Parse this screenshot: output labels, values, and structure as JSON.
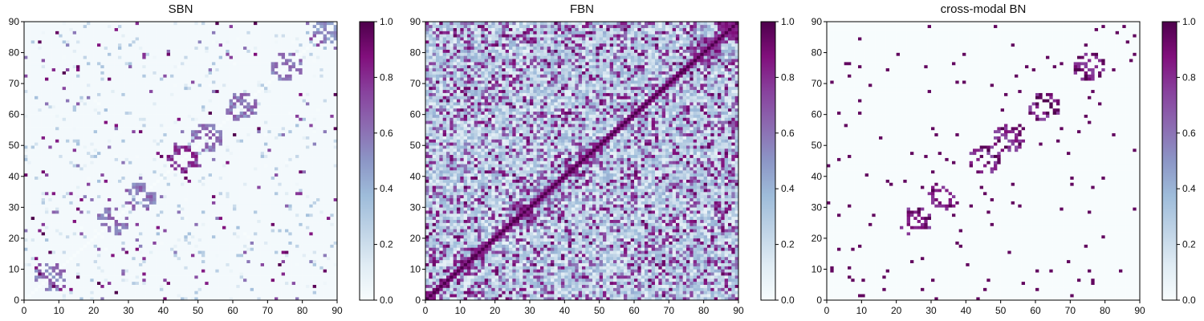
{
  "chart_data": [
    {
      "type": "heatmap",
      "title": "SBN",
      "x_ticks": [
        "0",
        "10",
        "20",
        "30",
        "40",
        "50",
        "60",
        "70",
        "80",
        "90"
      ],
      "y_ticks": [
        "0",
        "10",
        "20",
        "30",
        "40",
        "50",
        "60",
        "70",
        "80",
        "90"
      ],
      "xlim": [
        0,
        90
      ],
      "ylim": [
        0,
        90
      ],
      "grid_size": 90,
      "colormap": "BuPu",
      "colorbar": {
        "ticks": [
          "0.0",
          "0.2",
          "0.4",
          "0.6",
          "0.8",
          "1.0"
        ],
        "range": [
          0,
          1
        ]
      },
      "pattern": "sparse",
      "clusters": [
        {
          "center": [
            45,
            45
          ],
          "value": 0.9
        },
        {
          "center": [
            25,
            25
          ],
          "value": 0.7
        },
        {
          "center": [
            33,
            33
          ],
          "value": 0.7
        },
        {
          "center": [
            52,
            52
          ],
          "value": 0.7
        },
        {
          "center": [
            62,
            62
          ],
          "value": 0.7
        },
        {
          "center": [
            7,
            7
          ],
          "value": 0.7
        },
        {
          "center": [
            75,
            75
          ],
          "value": 0.7
        },
        {
          "center": [
            87,
            87
          ],
          "value": 0.6
        }
      ]
    },
    {
      "type": "heatmap",
      "title": "FBN",
      "x_ticks": [
        "0",
        "10",
        "20",
        "30",
        "40",
        "50",
        "60",
        "70",
        "80",
        "90"
      ],
      "y_ticks": [
        "0",
        "10",
        "20",
        "30",
        "40",
        "50",
        "60",
        "70",
        "80",
        "90"
      ],
      "xlim": [
        0,
        90
      ],
      "ylim": [
        0,
        90
      ],
      "grid_size": 90,
      "colormap": "BuPu",
      "colorbar": {
        "ticks": [
          "0.0",
          "0.2",
          "0.4",
          "0.6",
          "0.8",
          "1.0"
        ],
        "range": [
          0,
          1
        ]
      },
      "pattern": "dense",
      "clusters": [
        {
          "center": [
            48,
            48
          ],
          "value": 0.9
        },
        {
          "center": [
            12,
            12
          ],
          "value": 0.95
        },
        {
          "center": [
            27,
            27
          ],
          "value": 0.9
        },
        {
          "center": [
            80,
            80
          ],
          "value": 0.9
        },
        {
          "center": [
            87,
            87
          ],
          "value": 0.9
        }
      ]
    },
    {
      "type": "heatmap",
      "title": "cross-modal BN",
      "x_ticks": [
        "0",
        "10",
        "20",
        "30",
        "40",
        "50",
        "60",
        "70",
        "80",
        "90"
      ],
      "y_ticks": [
        "0",
        "10",
        "20",
        "30",
        "40",
        "50",
        "60",
        "70",
        "80",
        "90"
      ],
      "xlim": [
        0,
        90
      ],
      "ylim": [
        0,
        90
      ],
      "grid_size": 90,
      "colormap": "BuPu",
      "colorbar": {
        "ticks": [
          "0.0",
          "0.2",
          "0.4",
          "0.6",
          "0.8",
          "1.0"
        ],
        "range": [
          0,
          1
        ]
      },
      "pattern": "binary",
      "clusters": [
        {
          "center": [
            45,
            45
          ],
          "value": 1.0
        },
        {
          "center": [
            25,
            25
          ],
          "value": 1.0
        },
        {
          "center": [
            33,
            33
          ],
          "value": 1.0
        },
        {
          "center": [
            52,
            52
          ],
          "value": 1.0
        },
        {
          "center": [
            62,
            62
          ],
          "value": 1.0
        },
        {
          "center": [
            75,
            75
          ],
          "value": 1.0
        }
      ]
    }
  ],
  "colors": {
    "cmap_stops": [
      "#f7fcfd",
      "#e0ecf4",
      "#bfd3e6",
      "#9ebcda",
      "#8c96c6",
      "#8c6bb1",
      "#88419d",
      "#810f7c",
      "#4d004b"
    ]
  }
}
